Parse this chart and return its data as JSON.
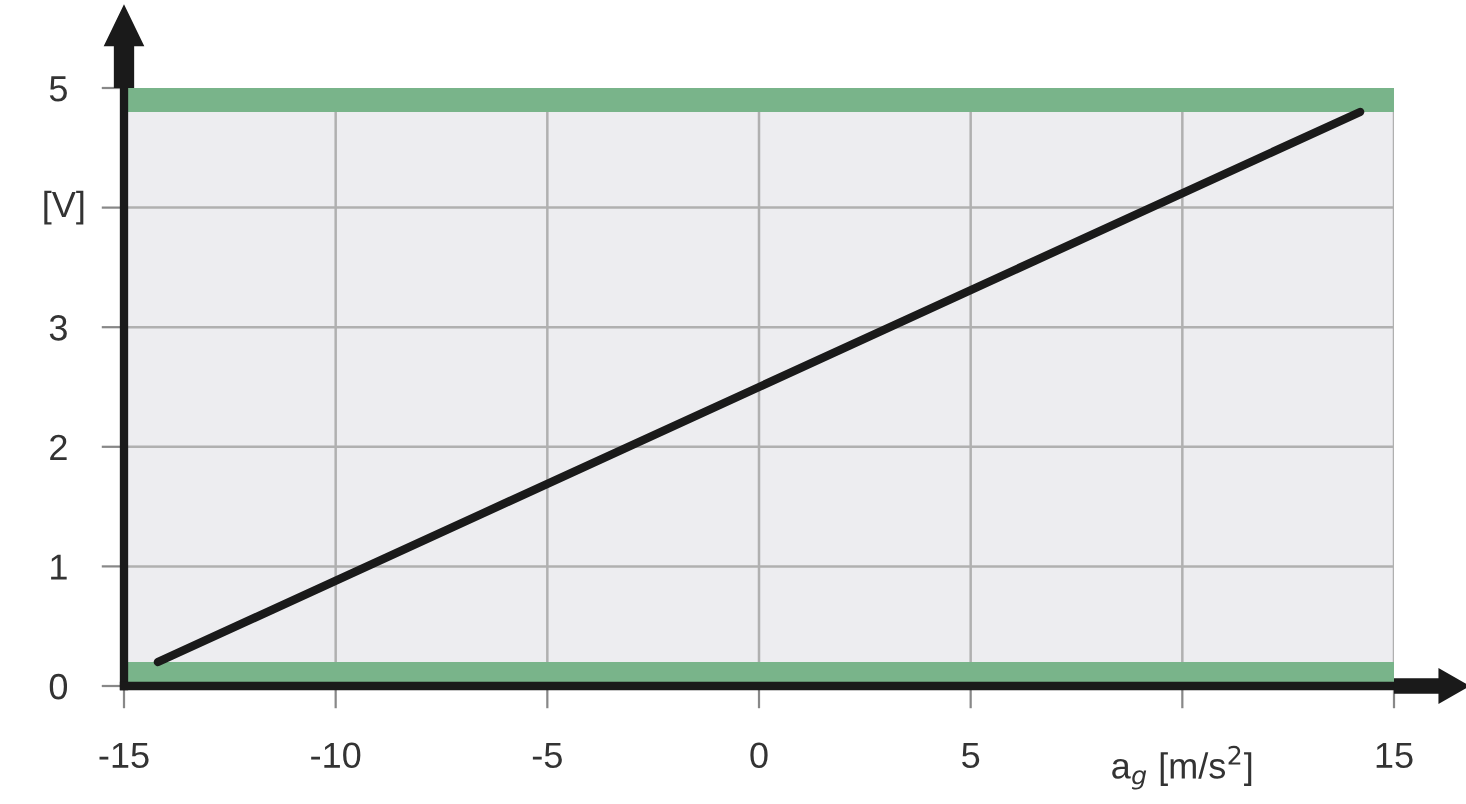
{
  "chart_data": {
    "type": "line",
    "xlabel": "a$_{g}$ [m/s$^{2}$]",
    "ylabel": "[V]",
    "x": [
      -14.2,
      14.2
    ],
    "series": [
      {
        "color": "#1a1a1a",
        "values": [
          0.2,
          4.8
        ]
      }
    ],
    "xlim": [
      -15,
      15
    ],
    "ylim": [
      0,
      5
    ],
    "xticks": [
      -15,
      -10,
      -5,
      0,
      5,
      {
        "value": 10,
        "label": null
      },
      15
    ],
    "yticks": [
      0,
      1,
      2,
      3,
      {
        "value": 4,
        "label": null
      },
      5
    ],
    "grid": true,
    "marker": "none",
    "line_style": "solid",
    "bands": [
      {
        "axis": "y",
        "from": 0,
        "to": 0.2,
        "color": "#79b48a"
      },
      {
        "axis": "y",
        "from": 4.8,
        "to": 5,
        "color": "#79b48a"
      }
    ]
  }
}
